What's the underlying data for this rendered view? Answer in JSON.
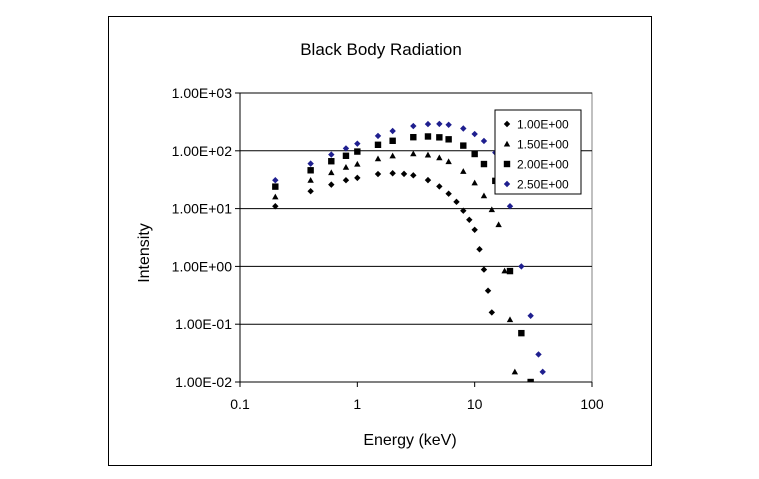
{
  "chart_data": {
    "type": "scatter",
    "title": "Black Body Radiation",
    "xlabel": "Energy (keV)",
    "ylabel": "Intensity",
    "x_scale": "log",
    "y_scale": "log",
    "xlim": [
      0.1,
      100
    ],
    "ylim": [
      0.01,
      1000
    ],
    "x_ticks": [
      0.1,
      1,
      10,
      100
    ],
    "x_tick_labels": [
      "0.1",
      "1",
      "10",
      "100"
    ],
    "y_ticks": [
      0.01,
      0.1,
      1,
      10,
      100,
      1000
    ],
    "y_tick_labels": [
      "1.00E-02",
      "1.00E-01",
      "1.00E+00",
      "1.00E+01",
      "1.00E+02",
      "1.00E+03"
    ],
    "grid": "horizontal major",
    "legend_position": "top-right",
    "series": [
      {
        "name": "1.00E+00",
        "marker": "diamond",
        "color": "#000000",
        "x": [
          0.2,
          0.4,
          0.6,
          0.8,
          1.0,
          1.5,
          2.0,
          2.5,
          3.0,
          4.0,
          5.0,
          6.0,
          7.0,
          8.0,
          9.0,
          10.0,
          11.0,
          12.0,
          13.0,
          14.0
        ],
        "y": [
          11,
          20,
          26,
          31,
          34,
          39.6,
          40.9,
          39.9,
          37.6,
          31.1,
          24.2,
          18.1,
          13.1,
          9.2,
          6.4,
          4.3,
          1.98,
          0.88,
          0.38,
          0.16
        ]
      },
      {
        "name": "1.50E+00",
        "marker": "triangle",
        "color": "#000000",
        "x": [
          0.2,
          0.4,
          0.6,
          0.8,
          1.0,
          1.5,
          2.0,
          3.0,
          4.0,
          5.0,
          6.0,
          8.0,
          10.0,
          12.0,
          14.0,
          16.0,
          18.0,
          20.0,
          22.0
        ],
        "y": [
          16,
          31,
          42,
          52,
          59,
          73,
          82,
          89.2,
          85,
          76,
          65,
          44.2,
          27.9,
          16.7,
          9.6,
          5.3,
          0.84,
          0.12,
          0.015
        ]
      },
      {
        "name": "2.00E+00",
        "marker": "square",
        "color": "#000000",
        "x": [
          0.2,
          0.4,
          0.6,
          0.8,
          1.0,
          1.5,
          2.0,
          3.0,
          4.0,
          5.0,
          6.0,
          8.0,
          10.0,
          12.0,
          15.0,
          20.0,
          25.0,
          30.0
        ],
        "y": [
          24,
          46,
          66,
          82,
          97,
          127,
          149,
          172,
          177,
          171,
          158,
          123,
          88,
          59,
          30.2,
          0.83,
          0.07,
          0.01
        ]
      },
      {
        "name": "2.50E+00",
        "marker": "diamond",
        "color": "#1f1f8f",
        "x": [
          0.2,
          0.4,
          0.6,
          0.8,
          1.0,
          1.5,
          2.0,
          3.0,
          4.0,
          5.0,
          6.0,
          8.0,
          10.0,
          12.0,
          15.0,
          20.0,
          25.0,
          30.0,
          35.0,
          38.0
        ],
        "y": [
          31,
          60,
          86,
          110,
          133,
          181,
          220,
          268,
          290,
          292,
          282,
          243,
          195,
          148,
          93,
          11,
          1.0,
          0.14,
          0.03,
          0.015
        ]
      }
    ]
  }
}
